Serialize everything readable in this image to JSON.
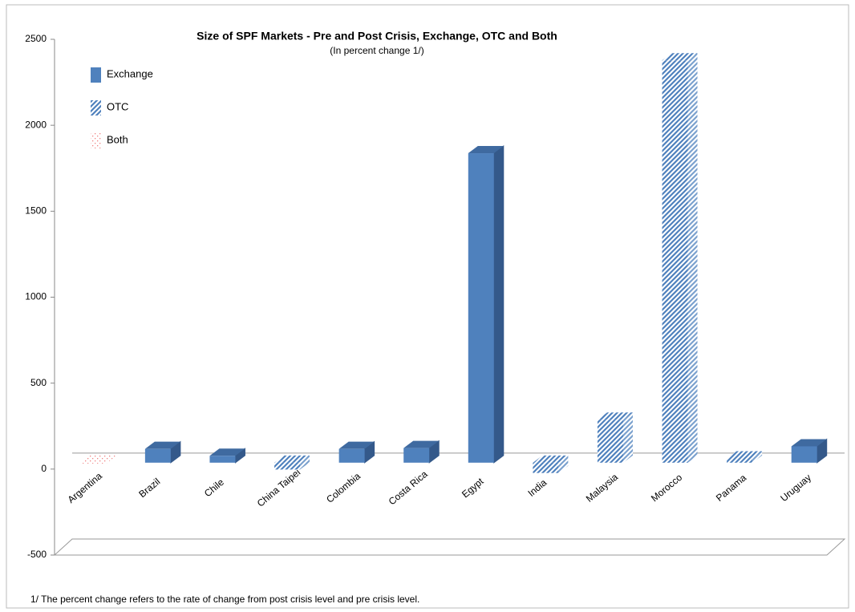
{
  "chart_data": {
    "type": "bar3d",
    "title": "Size of SPF Markets - Pre and Post Crisis, Exchange, OTC and Both",
    "subtitle": "(In percent change 1/)",
    "footnote": "1/ The percent change refers to the rate of change from post crisis level and pre crisis level.",
    "categories": [
      "Argentina",
      "Brazil",
      "Chile",
      "China Taipei",
      "Colombia",
      "Costa Rica",
      "Egypt",
      "India",
      "Malaysia",
      "Morocco",
      "Panama",
      "Uruguay"
    ],
    "series": [
      {
        "name": "Exchange",
        "color": "#4f81bd",
        "pattern": "solid",
        "values": [
          null,
          80,
          40,
          null,
          80,
          85,
          1800,
          null,
          null,
          null,
          null,
          95
        ]
      },
      {
        "name": "OTC",
        "color": "#4f81bd",
        "pattern": "stripes",
        "values": [
          null,
          null,
          null,
          -40,
          null,
          null,
          null,
          -60,
          250,
          2340,
          25,
          null
        ]
      },
      {
        "name": "Both",
        "color": "#f08080",
        "pattern": "dots",
        "values": [
          -5,
          null,
          null,
          null,
          null,
          null,
          null,
          null,
          null,
          null,
          null,
          null
        ]
      }
    ],
    "ylim": [
      -500,
      2500
    ],
    "yticks": [
      -500,
      0,
      500,
      1000,
      1500,
      2000,
      2500
    ],
    "legend": "top-left"
  }
}
